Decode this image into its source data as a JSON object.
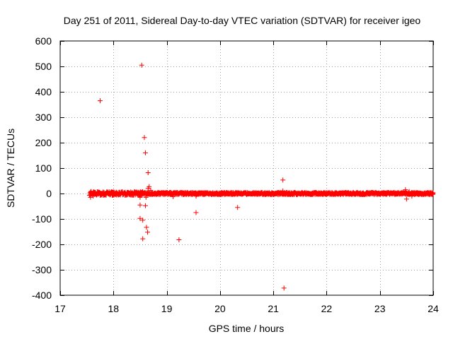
{
  "chart_data": {
    "type": "scatter",
    "title": "Day 251 of 2011, Sidereal Day-to-day VTEC variation (SDTVAR) for receiver igeo",
    "xlabel": "GPS time / hours",
    "ylabel": "SDTVAR / TECUs",
    "xlim": [
      17,
      24
    ],
    "ylim": [
      -400,
      600
    ],
    "xticks": [
      17,
      18,
      19,
      20,
      21,
      22,
      23,
      24
    ],
    "yticks": [
      -400,
      -300,
      -200,
      -100,
      0,
      100,
      200,
      300,
      400,
      500,
      600
    ],
    "grid": true,
    "marker": "+",
    "color": "#ff0000",
    "series": [
      {
        "name": "SDTVAR",
        "dense_band": {
          "x_start": 17.55,
          "x_end": 24.0,
          "step": 0.005,
          "y_center": 0,
          "y_spread": 4,
          "enhanced": {
            "x_start": 17.55,
            "x_end": 18.55,
            "y_spread": 7
          }
        },
        "points": [
          {
            "x": 17.57,
            "y": -15
          },
          {
            "x": 17.58,
            "y": 8
          },
          {
            "x": 17.62,
            "y": -10
          },
          {
            "x": 17.75,
            "y": 365
          },
          {
            "x": 18.5,
            "y": -15
          },
          {
            "x": 18.5,
            "y": -45
          },
          {
            "x": 18.5,
            "y": -98
          },
          {
            "x": 18.53,
            "y": 505
          },
          {
            "x": 18.55,
            "y": -105
          },
          {
            "x": 18.55,
            "y": -178
          },
          {
            "x": 18.58,
            "y": 220
          },
          {
            "x": 18.6,
            "y": 160
          },
          {
            "x": 18.6,
            "y": -48
          },
          {
            "x": 18.61,
            "y": -15
          },
          {
            "x": 18.62,
            "y": -133
          },
          {
            "x": 18.64,
            "y": -152
          },
          {
            "x": 18.65,
            "y": 82
          },
          {
            "x": 18.65,
            "y": 20
          },
          {
            "x": 18.67,
            "y": 27
          },
          {
            "x": 18.7,
            "y": 12
          },
          {
            "x": 19.12,
            "y": -12
          },
          {
            "x": 19.23,
            "y": -182
          },
          {
            "x": 19.55,
            "y": -75
          },
          {
            "x": 19.55,
            "y": -10
          },
          {
            "x": 20.33,
            "y": -55
          },
          {
            "x": 21.18,
            "y": 53
          },
          {
            "x": 21.18,
            "y": 10
          },
          {
            "x": 21.2,
            "y": -372
          },
          {
            "x": 23.48,
            "y": 15
          },
          {
            "x": 23.5,
            "y": -22
          },
          {
            "x": 23.55,
            "y": 8
          },
          {
            "x": 23.6,
            "y": -10
          }
        ]
      }
    ]
  }
}
